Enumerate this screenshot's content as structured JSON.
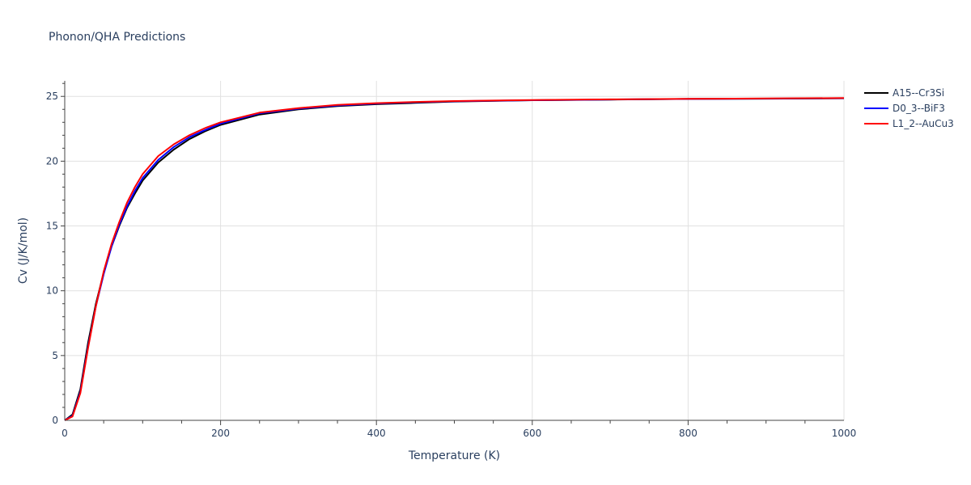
{
  "chart_data": {
    "type": "line",
    "title": "Phonon/QHA Predictions",
    "xlabel": "Temperature (K)",
    "ylabel": "Cv (J/K/mol)",
    "xlim": [
      0,
      1000
    ],
    "ylim": [
      0,
      26.2
    ],
    "xticks": [
      0,
      200,
      400,
      600,
      800,
      1000
    ],
    "yticks": [
      0,
      5,
      10,
      15,
      20,
      25
    ],
    "grid": true,
    "legend_position": "top-right",
    "series": [
      {
        "name": "A15--Cr3Si",
        "color": "#000000",
        "x": [
          0,
          10,
          20,
          30,
          40,
          50,
          60,
          70,
          80,
          90,
          100,
          120,
          140,
          160,
          180,
          200,
          250,
          300,
          350,
          400,
          450,
          500,
          600,
          700,
          800,
          900,
          1000
        ],
        "y": [
          0,
          0.45,
          2.4,
          6.0,
          9.0,
          11.4,
          13.4,
          15.0,
          16.4,
          17.5,
          18.5,
          19.9,
          20.9,
          21.7,
          22.3,
          22.8,
          23.6,
          24.0,
          24.25,
          24.4,
          24.5,
          24.6,
          24.7,
          24.75,
          24.8,
          24.82,
          24.85
        ]
      },
      {
        "name": "D0_3--BiF3",
        "color": "#0000ff",
        "x": [
          0,
          10,
          20,
          30,
          40,
          50,
          60,
          70,
          80,
          90,
          100,
          120,
          140,
          160,
          180,
          200,
          250,
          300,
          350,
          400,
          450,
          500,
          600,
          700,
          800,
          900,
          1000
        ],
        "y": [
          0,
          0.35,
          2.2,
          5.7,
          8.8,
          11.3,
          13.4,
          15.1,
          16.5,
          17.7,
          18.7,
          20.1,
          21.1,
          21.85,
          22.4,
          22.9,
          23.7,
          24.05,
          24.3,
          24.45,
          24.55,
          24.62,
          24.7,
          24.76,
          24.8,
          24.83,
          24.86
        ]
      },
      {
        "name": "L1_2--AuCu3",
        "color": "#ff0000",
        "x": [
          0,
          10,
          20,
          30,
          40,
          50,
          60,
          70,
          80,
          90,
          100,
          120,
          140,
          160,
          180,
          200,
          250,
          300,
          350,
          400,
          450,
          500,
          600,
          700,
          800,
          900,
          1000
        ],
        "y": [
          0,
          0.3,
          2.1,
          5.6,
          8.8,
          11.5,
          13.6,
          15.3,
          16.8,
          18.0,
          19.0,
          20.4,
          21.3,
          22.0,
          22.55,
          23.0,
          23.75,
          24.1,
          24.35,
          24.48,
          24.57,
          24.64,
          24.72,
          24.77,
          24.81,
          24.84,
          24.87
        ]
      }
    ]
  }
}
